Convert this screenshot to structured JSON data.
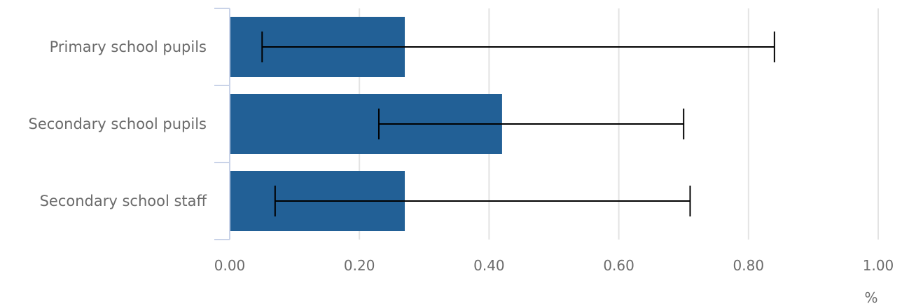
{
  "chart_data": {
    "type": "bar",
    "orientation": "horizontal",
    "categories": [
      "Primary school pupils",
      "Secondary school pupils",
      "Secondary school staff"
    ],
    "values": [
      0.27,
      0.42,
      0.27
    ],
    "error_low": [
      0.05,
      0.23,
      0.07
    ],
    "error_high": [
      0.84,
      0.7,
      0.71
    ],
    "xlim": [
      0,
      1
    ],
    "xticks": [
      "0.00",
      "0.20",
      "0.40",
      "0.60",
      "0.80",
      "1.00"
    ],
    "xtick_values": [
      0,
      0.2,
      0.4,
      0.6,
      0.8,
      1.0
    ],
    "xunit": "%",
    "grid": true,
    "bar_color": "#226096",
    "error_color": "#000000"
  }
}
